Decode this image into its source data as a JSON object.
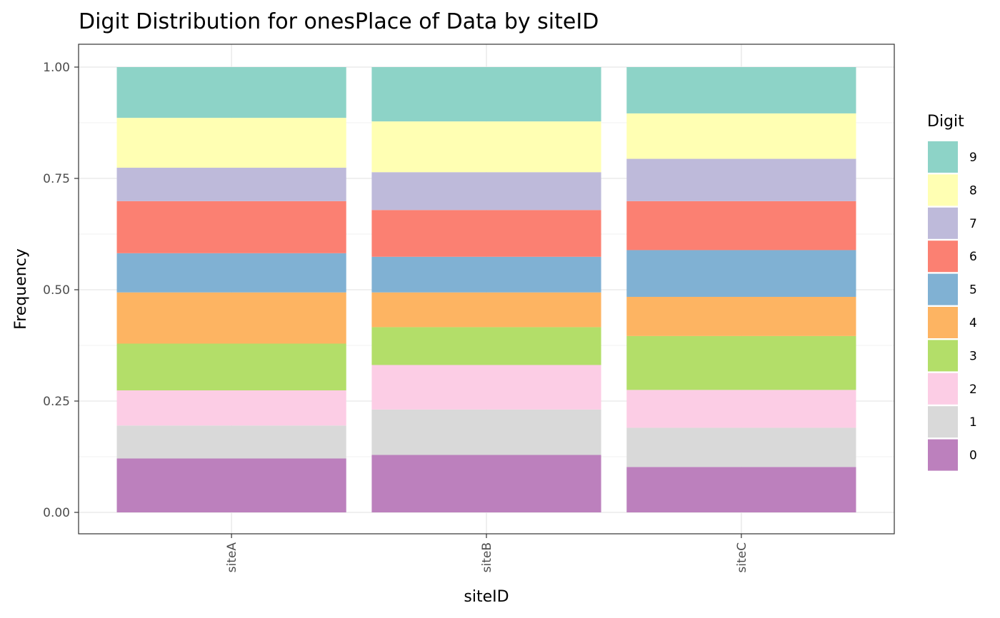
{
  "chart_data": {
    "type": "bar",
    "stacked": true,
    "title": "Digit Distribution for onesPlace of Data by siteID",
    "xlabel": "siteID",
    "ylabel": "Frequency",
    "ylim": [
      0,
      1
    ],
    "yticks": [
      "0.00",
      "0.25",
      "0.50",
      "0.75",
      "1.00"
    ],
    "ytick_values": [
      0,
      0.25,
      0.5,
      0.75,
      1.0
    ],
    "categories": [
      "siteA",
      "siteB",
      "siteC"
    ],
    "grid": true,
    "legend": {
      "title": "Digit",
      "position": "right"
    },
    "series": [
      {
        "name": "0",
        "color": "#BC80BD",
        "values": [
          0.121,
          0.129,
          0.102
        ]
      },
      {
        "name": "1",
        "color": "#D9D9D9",
        "values": [
          0.074,
          0.102,
          0.088
        ]
      },
      {
        "name": "2",
        "color": "#FCCDE5",
        "values": [
          0.079,
          0.1,
          0.085
        ]
      },
      {
        "name": "3",
        "color": "#B3DE69",
        "values": [
          0.105,
          0.085,
          0.121
        ]
      },
      {
        "name": "4",
        "color": "#FDB462",
        "values": [
          0.115,
          0.078,
          0.088
        ]
      },
      {
        "name": "5",
        "color": "#80B1D3",
        "values": [
          0.088,
          0.08,
          0.105
        ]
      },
      {
        "name": "6",
        "color": "#FB8072",
        "values": [
          0.117,
          0.105,
          0.11
        ]
      },
      {
        "name": "7",
        "color": "#BEBADA",
        "values": [
          0.075,
          0.085,
          0.095
        ]
      },
      {
        "name": "8",
        "color": "#FFFFB3",
        "values": [
          0.112,
          0.114,
          0.102
        ]
      },
      {
        "name": "9",
        "color": "#8DD3C7",
        "values": [
          0.114,
          0.122,
          0.104
        ]
      }
    ]
  }
}
